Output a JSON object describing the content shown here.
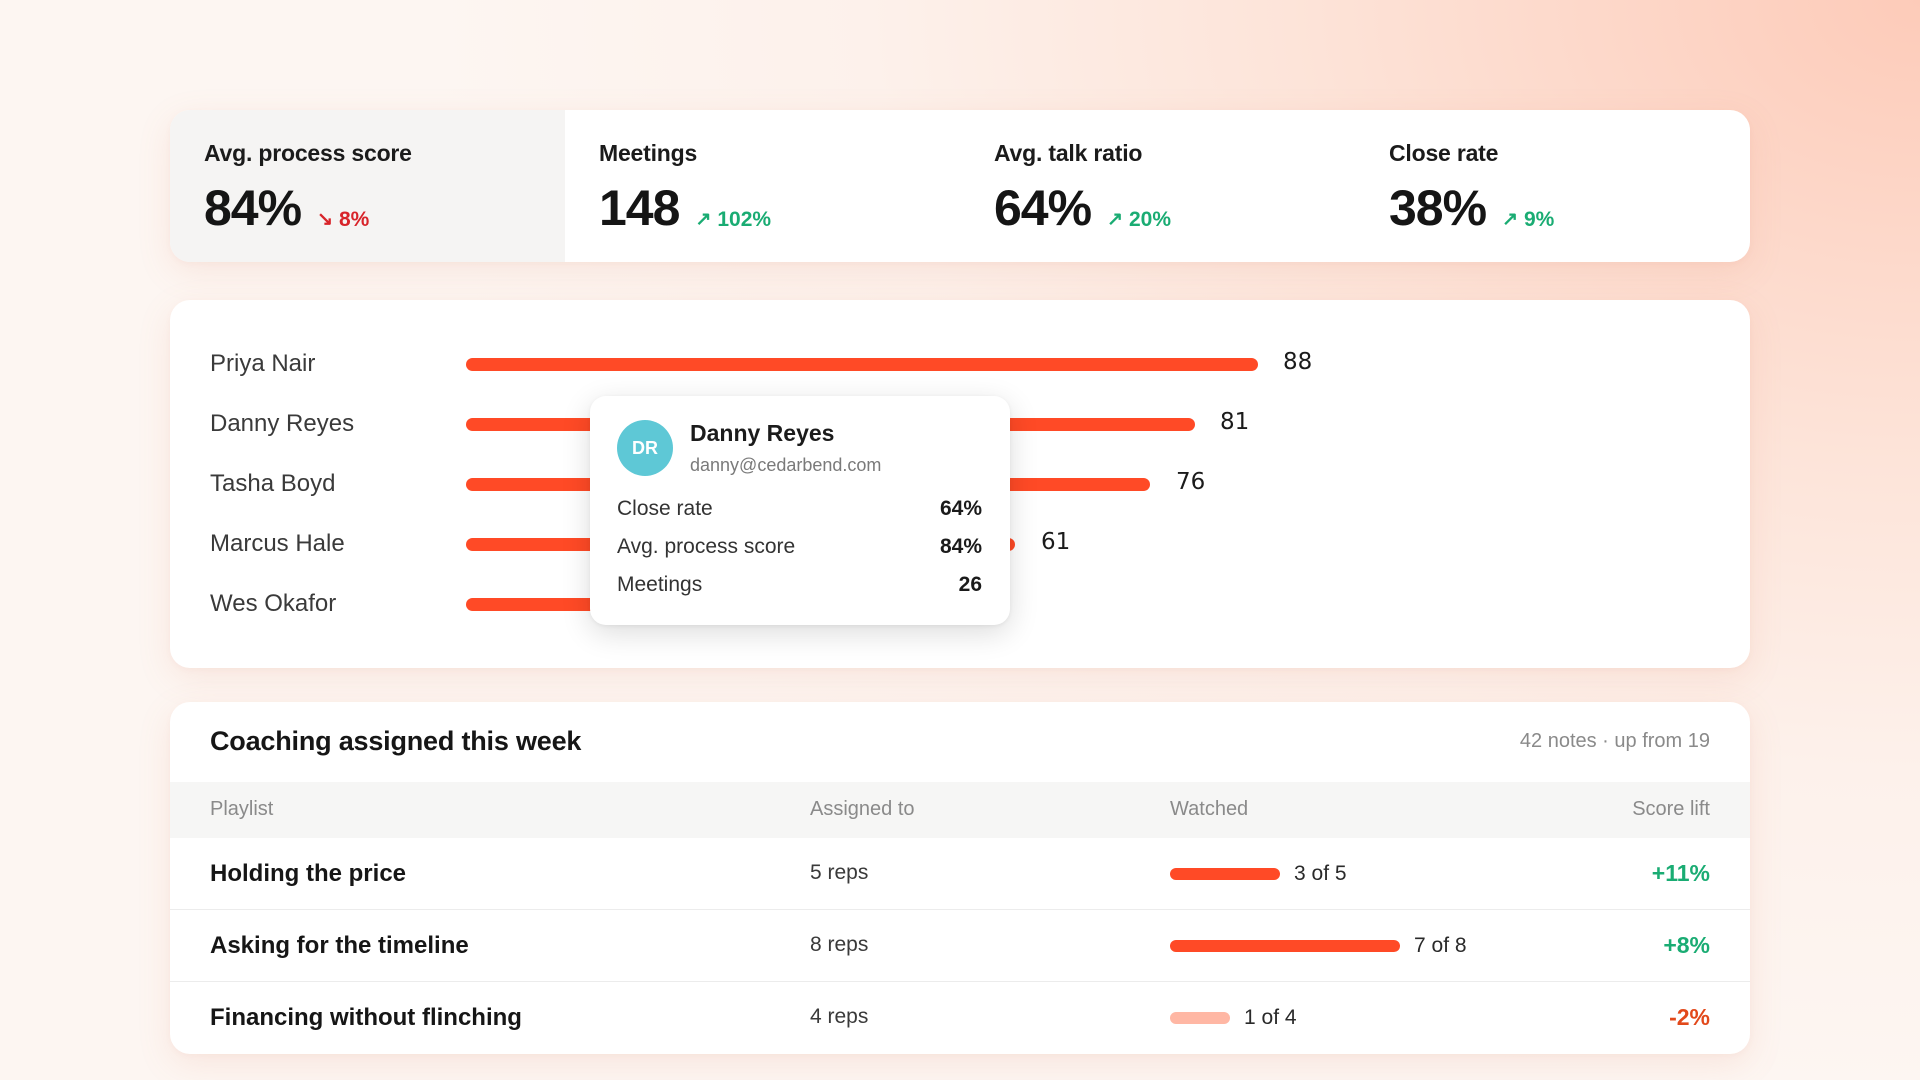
{
  "kpis": [
    {
      "label": "Avg. process score",
      "value": "84%",
      "delta": "8%",
      "direction": "down",
      "arrow": "↘",
      "active": true
    },
    {
      "label": "Meetings",
      "value": "148",
      "delta": "102%",
      "direction": "up",
      "arrow": "↗",
      "active": false
    },
    {
      "label": "Avg. talk ratio",
      "value": "64%",
      "delta": "20%",
      "direction": "up",
      "arrow": "↗",
      "active": false
    },
    {
      "label": "Close rate",
      "value": "38%",
      "delta": "9%",
      "direction": "up",
      "arrow": "↗",
      "active": false
    }
  ],
  "reps": [
    {
      "name": "Priya Nair",
      "value": "88"
    },
    {
      "name": "Danny Reyes",
      "value": "81"
    },
    {
      "name": "Tasha Boyd",
      "value": "76"
    },
    {
      "name": "Marcus Hale",
      "value": "61"
    },
    {
      "name": "Wes Okafor",
      "value": ""
    }
  ],
  "tooltip": {
    "initials": "DR",
    "name": "Danny Reyes",
    "email": "danny@cedarbend.com",
    "rows": [
      {
        "label": "Close rate",
        "value": "64%"
      },
      {
        "label": "Avg. process score",
        "value": "84%"
      },
      {
        "label": "Meetings",
        "value": "26"
      }
    ]
  },
  "coaching": {
    "title": "Coaching assigned this week",
    "meta": "42 notes · up from 19",
    "headers": {
      "playlist": "Playlist",
      "assigned": "Assigned to",
      "watched": "Watched",
      "lift": "Score lift"
    },
    "rows": [
      {
        "playlist": "Holding the price",
        "assigned": "5 reps",
        "watched_text": "3 of 5",
        "watched": 3,
        "total": 5,
        "lift": "+11%",
        "lift_dir": "pos"
      },
      {
        "playlist": "Asking for the timeline",
        "assigned": "8 reps",
        "watched_text": "7 of 8",
        "watched": 7,
        "total": 8,
        "lift": "+8%",
        "lift_dir": "pos"
      },
      {
        "playlist": "Financing without flinching",
        "assigned": "4 reps",
        "watched_text": "1 of 4",
        "watched": 1,
        "total": 4,
        "lift": "-2%",
        "lift_dir": "neg"
      }
    ]
  },
  "colors": {
    "accent": "#ff4a26",
    "accent_faint": "#ffb7a4",
    "positive": "#1aac73",
    "negative": "#d8242a",
    "avatar": "#5ec8d6"
  }
}
